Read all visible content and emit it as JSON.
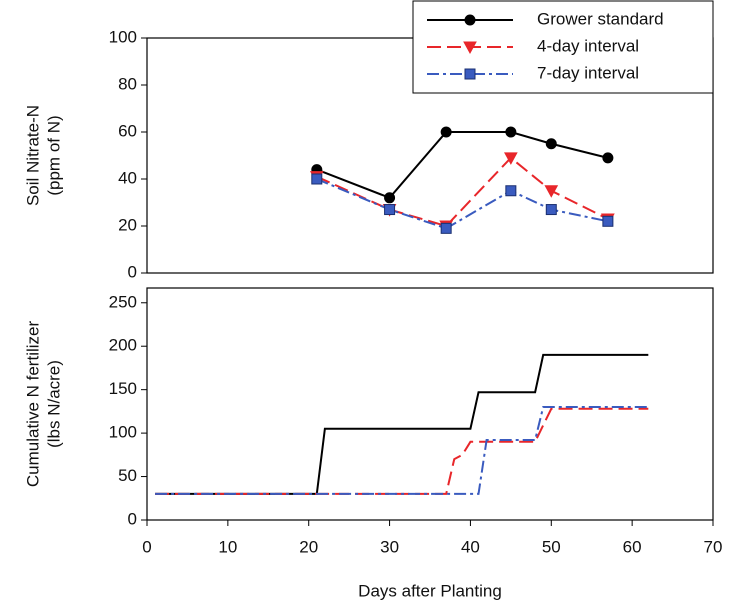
{
  "chart_data": [
    {
      "type": "line",
      "ylabel": [
        "Soil Nitrate-N",
        "(ppm of N)"
      ],
      "xlim": [
        0,
        70
      ],
      "ylim": [
        0,
        100
      ],
      "yticks": [
        0,
        20,
        40,
        60,
        80,
        100
      ],
      "legend": "top-right",
      "series": [
        {
          "name": "Grower standard",
          "color": "#000000",
          "dash": "solid",
          "marker": "circle",
          "x": [
            21,
            30,
            37,
            45,
            50,
            57
          ],
          "values": [
            44,
            32,
            60,
            60,
            55,
            49
          ]
        },
        {
          "name": "4-day interval",
          "color": "#e8262a",
          "dash": "dashed",
          "marker": "triangle-down",
          "x": [
            21,
            30,
            37,
            45,
            50,
            57
          ],
          "values": [
            41,
            27,
            20,
            49,
            35,
            23
          ]
        },
        {
          "name": "7-day interval",
          "color": "#3a5bbf",
          "dash": "dashdot",
          "marker": "square",
          "x": [
            21,
            30,
            37,
            45,
            50,
            57
          ],
          "values": [
            40,
            27,
            19,
            35,
            27,
            22
          ]
        }
      ]
    },
    {
      "type": "line",
      "ylabel": [
        "Cumulative N fertilizer",
        "(lbs N/acre)"
      ],
      "xlabel": "Days after Planting",
      "xlim": [
        0,
        70
      ],
      "xticks": [
        0,
        10,
        20,
        30,
        40,
        50,
        60,
        70
      ],
      "ylim": [
        0,
        267
      ],
      "yticks": [
        0,
        50,
        100,
        150,
        200,
        250
      ],
      "series": [
        {
          "color": "#000000",
          "dash": "solid",
          "x": [
            1,
            21,
            22,
            40,
            41,
            48,
            49,
            62
          ],
          "values": [
            30,
            30,
            105,
            105,
            147,
            147,
            190,
            190
          ]
        },
        {
          "color": "#e8262a",
          "dash": "dashed",
          "x": [
            1,
            37,
            38,
            39,
            40,
            48,
            50,
            62
          ],
          "values": [
            30,
            30,
            70,
            75,
            90,
            90,
            128,
            128
          ]
        },
        {
          "color": "#3a5bbf",
          "dash": "dashdot",
          "x": [
            1,
            41,
            42,
            48,
            49,
            62
          ],
          "values": [
            30,
            30,
            92,
            92,
            130,
            130
          ]
        }
      ]
    }
  ]
}
